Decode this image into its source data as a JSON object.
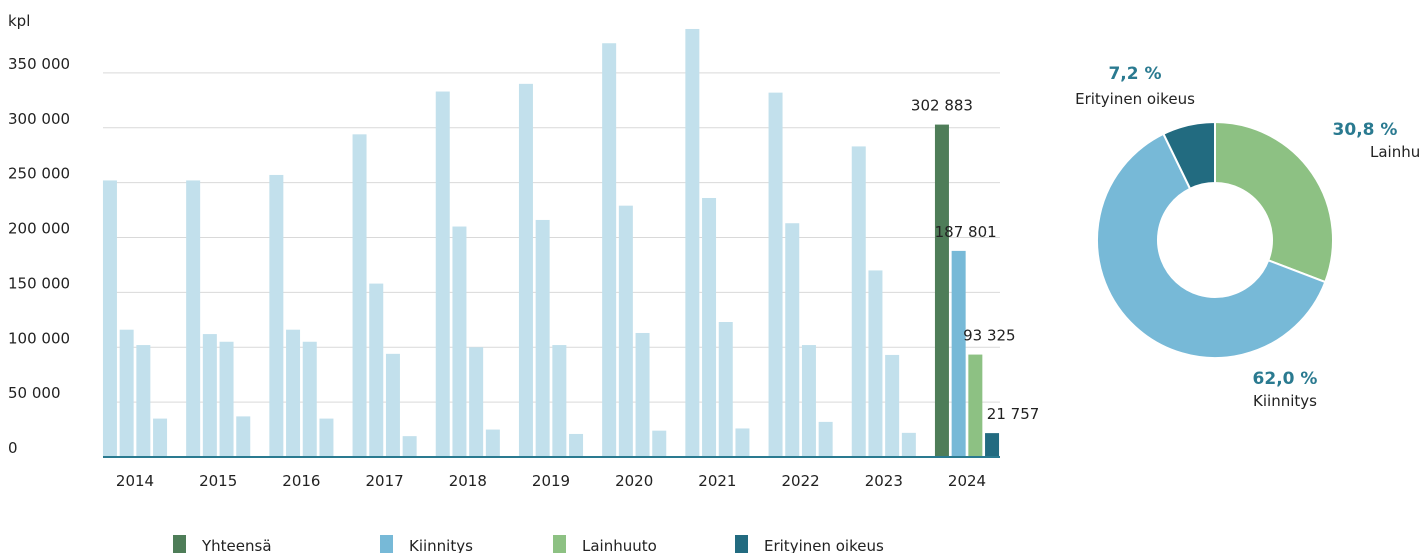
{
  "chart_data": [
    {
      "type": "bar",
      "y_label": "kpl",
      "categories": [
        "2014",
        "2015",
        "2016",
        "2017",
        "2018",
        "2019",
        "2020",
        "2021",
        "2022",
        "2023",
        "2024"
      ],
      "muted_color": "#c2e0ec",
      "series": [
        {
          "name": "Yhteensä",
          "color": "#4e7d58",
          "values": [
            252000,
            252000,
            257000,
            294000,
            333000,
            340000,
            377000,
            390000,
            332000,
            283000,
            302883
          ],
          "value_labels": [
            null,
            null,
            null,
            null,
            null,
            null,
            null,
            null,
            null,
            null,
            "302 883"
          ]
        },
        {
          "name": "Kiinnitys",
          "color": "#77b9d7",
          "values": [
            116000,
            112000,
            116000,
            158000,
            210000,
            216000,
            229000,
            236000,
            213000,
            170000,
            187801
          ],
          "value_labels": [
            null,
            null,
            null,
            null,
            null,
            null,
            null,
            null,
            null,
            null,
            "187 801"
          ]
        },
        {
          "name": "Lainhuuto",
          "color": "#8dc183",
          "values": [
            102000,
            105000,
            105000,
            94000,
            100000,
            102000,
            113000,
            123000,
            102000,
            93000,
            93325
          ],
          "value_labels": [
            null,
            null,
            null,
            null,
            null,
            null,
            null,
            null,
            null,
            null,
            "93 325"
          ]
        },
        {
          "name": "Erityinen oikeus",
          "color": "#226b80",
          "values": [
            35000,
            37000,
            35000,
            19000,
            25000,
            21000,
            24000,
            26000,
            32000,
            22000,
            21757
          ],
          "value_labels": [
            null,
            null,
            null,
            null,
            null,
            null,
            null,
            null,
            null,
            null,
            "21 757"
          ]
        }
      ],
      "ylim": [
        0,
        400000
      ],
      "yticks": [
        0,
        {
          "value": 50000,
          "label": "50 000"
        },
        {
          "value": 100000,
          "label": "100 000"
        },
        {
          "value": 150000,
          "label": "150 000"
        },
        {
          "value": 200000,
          "label": "200 000"
        },
        {
          "value": 250000,
          "label": "250 000"
        },
        {
          "value": 300000,
          "label": "300 000"
        },
        {
          "value": 350000,
          "label": "350 000"
        }
      ],
      "grid": true,
      "legend": "bottom"
    },
    {
      "type": "donut",
      "categories": [
        "Lainhuuto",
        "Kiinnitys",
        "Erityinen oikeus"
      ],
      "values": [
        30.8,
        62,
        7.2
      ],
      "value_labels": [
        "30,8 %",
        "62,0 %",
        "7,2 %"
      ],
      "colors": [
        "#8dc183",
        "#77b9d7",
        "#226b80"
      ]
    }
  ]
}
